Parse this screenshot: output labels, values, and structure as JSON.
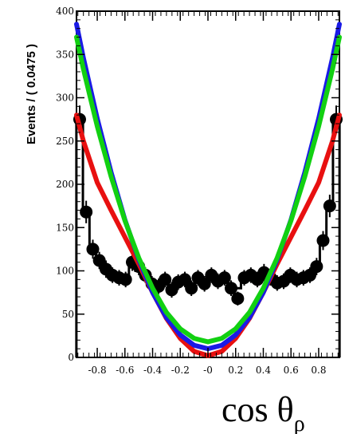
{
  "chart_data": {
    "type": "line",
    "xlabel": "cos θ",
    "xlabel_subscript": "ρ",
    "ylabel": "Events / ( 0.0475 )",
    "xlim": [
      -0.95,
      0.95
    ],
    "ylim": [
      0,
      400
    ],
    "x_ticks": [
      -0.8,
      -0.6,
      -0.4,
      -0.2,
      0,
      0.2,
      0.4,
      0.6,
      0.8
    ],
    "x_tick_labels": [
      "-0.8",
      "-0.6",
      "-0.4",
      "-0.2",
      "-0",
      "0.2",
      "0.4",
      "0.6",
      "0.8"
    ],
    "y_ticks": [
      0,
      50,
      100,
      150,
      200,
      250,
      300,
      350,
      400
    ],
    "y_tick_labels": [
      "0",
      "50",
      "100",
      "150",
      "200",
      "250",
      "300",
      "350",
      "400"
    ],
    "data_points": {
      "x": [
        -0.927,
        -0.88,
        -0.832,
        -0.785,
        -0.737,
        -0.69,
        -0.642,
        -0.595,
        -0.547,
        -0.5,
        -0.452,
        -0.405,
        -0.357,
        -0.31,
        -0.262,
        -0.215,
        -0.167,
        -0.12,
        -0.072,
        -0.025,
        0.025,
        0.072,
        0.12,
        0.167,
        0.215,
        0.262,
        0.31,
        0.357,
        0.405,
        0.452,
        0.5,
        0.547,
        0.595,
        0.642,
        0.69,
        0.737,
        0.785,
        0.832,
        0.88,
        0.927
      ],
      "y": [
        275,
        168,
        125,
        112,
        102,
        95,
        92,
        90,
        110,
        105,
        95,
        85,
        82,
        90,
        78,
        87,
        90,
        80,
        92,
        85,
        95,
        88,
        92,
        80,
        68,
        92,
        95,
        90,
        98,
        92,
        86,
        88,
        95,
        90,
        92,
        95,
        105,
        135,
        175,
        275
      ],
      "y_error": [
        16,
        13,
        11,
        10,
        10,
        9,
        9,
        9,
        10,
        10,
        9,
        9,
        9,
        9,
        9,
        9,
        9,
        9,
        9,
        9,
        9,
        9,
        9,
        9,
        8,
        9,
        9,
        9,
        10,
        9,
        9,
        9,
        9,
        9,
        9,
        9,
        10,
        11,
        13,
        16
      ]
    },
    "histogram": {
      "x": [
        -0.927,
        -0.88,
        -0.832,
        -0.785,
        -0.737,
        -0.69,
        -0.642,
        -0.595,
        -0.547,
        -0.5,
        -0.452,
        -0.405,
        -0.357,
        -0.31,
        -0.262,
        -0.215,
        -0.167,
        -0.12,
        -0.072,
        -0.025,
        0.025,
        0.072,
        0.12,
        0.167,
        0.215,
        0.262,
        0.31,
        0.357,
        0.405,
        0.452,
        0.5,
        0.547,
        0.595,
        0.642,
        0.69,
        0.737,
        0.785,
        0.832,
        0.88,
        0.927
      ],
      "y": [
        275,
        168,
        125,
        112,
        100,
        96,
        94,
        92,
        104,
        100,
        95,
        88,
        85,
        88,
        82,
        86,
        88,
        84,
        90,
        87,
        92,
        88,
        90,
        84,
        80,
        90,
        93,
        90,
        95,
        92,
        88,
        90,
        94,
        92,
        94,
        96,
        104,
        132,
        172,
        275
      ]
    },
    "curves": [
      {
        "color": "#e81010",
        "x": [
          -0.95,
          -0.9,
          -0.8,
          -0.7,
          -0.6,
          -0.5,
          -0.4,
          -0.3,
          -0.2,
          -0.1,
          0,
          0.1,
          0.2,
          0.3,
          0.4,
          0.5,
          0.6,
          0.7,
          0.8,
          0.9,
          0.95
        ],
        "y": [
          280,
          250,
          202,
          170,
          139,
          108,
          75,
          45,
          22,
          7,
          2,
          7,
          22,
          45,
          75,
          108,
          139,
          170,
          202,
          250,
          280
        ]
      },
      {
        "color": "#1a1ae6",
        "x": [
          -0.95,
          -0.9,
          -0.8,
          -0.7,
          -0.6,
          -0.5,
          -0.4,
          -0.3,
          -0.2,
          -0.1,
          0,
          0.1,
          0.2,
          0.3,
          0.4,
          0.5,
          0.6,
          0.7,
          0.8,
          0.9,
          0.95
        ],
        "y": [
          385,
          346,
          276,
          214,
          159,
          113,
          75,
          46,
          26,
          14,
          10,
          14,
          26,
          46,
          75,
          113,
          159,
          214,
          276,
          346,
          385
        ]
      },
      {
        "color": "#12d012",
        "x": [
          -0.95,
          -0.9,
          -0.8,
          -0.7,
          -0.6,
          -0.5,
          -0.4,
          -0.3,
          -0.2,
          -0.1,
          0,
          0.1,
          0.2,
          0.3,
          0.4,
          0.5,
          0.6,
          0.7,
          0.8,
          0.9,
          0.95
        ],
        "y": [
          370,
          333,
          267,
          209,
          158,
          115,
          80,
          52,
          33,
          22,
          18,
          22,
          33,
          52,
          80,
          115,
          158,
          209,
          267,
          333,
          370
        ]
      }
    ],
    "grid": false,
    "legend": "none"
  }
}
